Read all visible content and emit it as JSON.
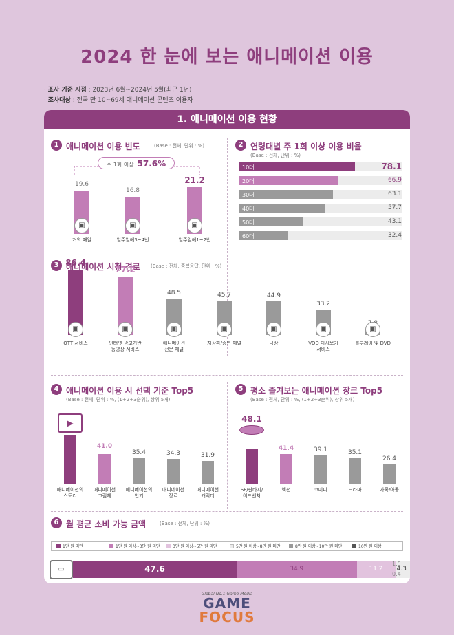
{
  "title": "2024 한 눈에 보는 애니메이션 이용",
  "meta": {
    "period_label": "조사 기준 시점",
    "period_value": " : 2023년 6월~2024년 5월(최근 1년)",
    "target_label": "조사대상",
    "target_value": " : 전국 만 10~69세 애니메이션 콘텐츠 이용자"
  },
  "section_title": "1. 애니메이션 이용 현황",
  "colors": {
    "purple": "#8e3e7d",
    "pink": "#c27db6",
    "gray": "#9a9a9a",
    "light_pink": "#e2c3de"
  },
  "panel1": {
    "num": "1",
    "title": "애니메이션 이용 빈도",
    "base": "(Base : 전체, 단위 : %)",
    "bracket_text": "주 1회 이상",
    "bracket_value": "57.6%",
    "icon": "tv-icon"
  },
  "panel2": {
    "num": "2",
    "title": "연령대별 주 1회 이상 이용 비율",
    "base": "(Base : 전체, 단위 : %)"
  },
  "panel3": {
    "num": "3",
    "title": "애니메이션 시청 경로",
    "base": "(Base : 전체, 중복응답, 단위 : %)"
  },
  "panel4": {
    "num": "4",
    "title": "애니메이션 이용 시 선택 기준 Top5",
    "base": "(Base : 전체, 단위 : %, (1+2+3순위), 상위 5개)"
  },
  "panel5": {
    "num": "5",
    "title": "평소 즐겨보는 애니메이션 장르 Top5",
    "base": "(Base : 전체, 단위 : %, (1+2+3순위), 상위 5개)"
  },
  "panel6": {
    "num": "6",
    "title": "월 평균 소비 가능 금액",
    "base": "(Base : 전체, 단위 : %)"
  },
  "chart_data": [
    {
      "type": "bar",
      "categories": [
        "거의 매일",
        "일주일에3~4번",
        "일주일에1~2번"
      ],
      "values": [
        19.6,
        16.8,
        21.2
      ]
    },
    {
      "type": "bar",
      "orientation": "horizontal",
      "categories": [
        "10대",
        "20대",
        "30대",
        "40대",
        "50대",
        "60대"
      ],
      "values": [
        78.1,
        66.9,
        63.1,
        57.7,
        43.1,
        32.4
      ]
    },
    {
      "type": "bar",
      "categories": [
        "OTT 서비스",
        "인터넷 광고기반\n동영상 서비스",
        "애니메이션\n전문 채널",
        "지상파/종편 채널",
        "극장",
        "VOD 다시보기\n서비스",
        "블루레이 및 DVD"
      ],
      "values": [
        86.4,
        77.2,
        48.5,
        45.7,
        44.9,
        33.2,
        7.8
      ]
    },
    {
      "type": "bar",
      "categories": [
        "애니메이션의\n스토리",
        "애니메이션\n그림체",
        "애니메이션의\n인기",
        "애니메이션\n장르",
        "애니메이션\n캐릭터"
      ],
      "values": [
        66.8,
        41.0,
        35.4,
        34.3,
        31.9
      ]
    },
    {
      "type": "bar",
      "categories": [
        "SF/판타지/\n어드벤처",
        "액션",
        "코미디",
        "드라마",
        "가족/아동"
      ],
      "values": [
        48.1,
        41.4,
        39.1,
        35.1,
        26.4
      ]
    },
    {
      "type": "bar",
      "stacked": true,
      "orientation": "horizontal",
      "series": [
        {
          "name": "1만 원 미만",
          "values": [
            47.6
          ]
        },
        {
          "name": "1만 원 이상~3만 원 미만",
          "values": [
            34.9
          ]
        },
        {
          "name": "3만 원 이상~5만 원 미만",
          "values": [
            11.2
          ]
        },
        {
          "name": "5만 원 이상~8만 원 미만",
          "values": [
            4.3
          ]
        },
        {
          "name": "8만 원 이상~10만 원 미만",
          "values": [
            1.5
          ]
        },
        {
          "name": "10만 원 이상",
          "values": [
            0.4
          ]
        }
      ]
    }
  ],
  "logo": {
    "tagline": "Global No.1 Game Media",
    "line1": "GAME",
    "line2": "FOCUS"
  }
}
